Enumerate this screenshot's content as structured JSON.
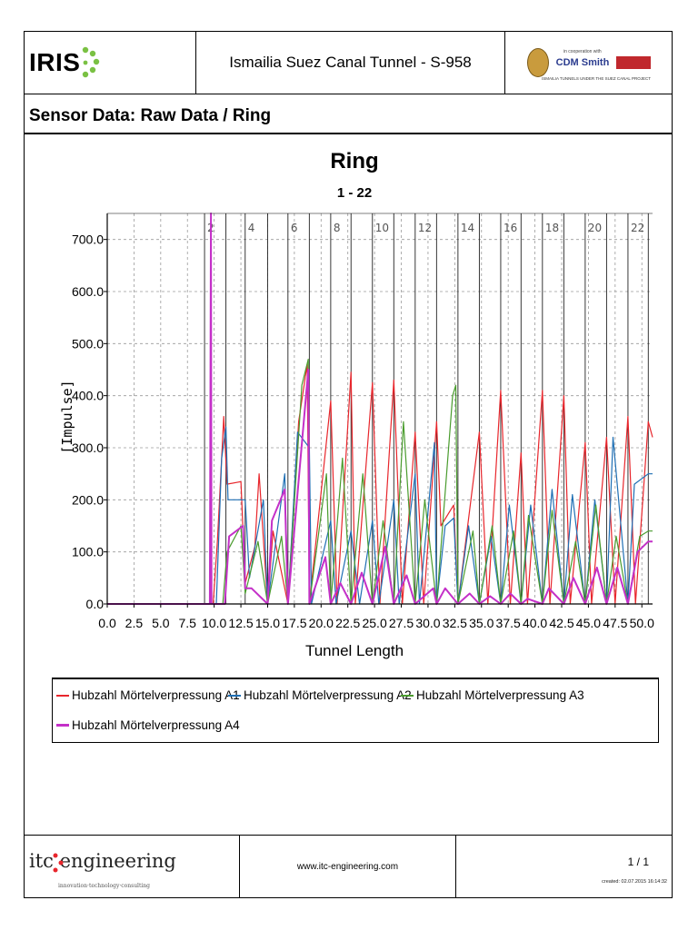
{
  "header": {
    "logo_text": "IRIS",
    "title": "Ismailia Suez Canal Tunnel - S-958",
    "partner_logo_text": "CDM Smith",
    "cooperation_text": "in cooperation with",
    "project_text": "ISMAILIA TUNNELS UNDER THE SUEZ CANAL PROJECT"
  },
  "subtitle": "Sensor Data: Raw Data / Ring",
  "chart_data": {
    "type": "line",
    "title": "Ring",
    "subtitle": "1 - 22",
    "xlabel": "Tunnel Length",
    "ylabel": "[Impulse]",
    "xlim": [
      0,
      51.0
    ],
    "ylim": [
      0,
      750
    ],
    "x_ticks": [
      "0.0",
      "2.5",
      "5.0",
      "7.5",
      "10.0",
      "12.5",
      "15.0",
      "17.5",
      "20.0",
      "22.5",
      "25.0",
      "27.5",
      "30.0",
      "32.5",
      "35.0",
      "37.5",
      "40.0",
      "42.5",
      "45.0",
      "47.5",
      "50.0"
    ],
    "y_ticks": [
      "0.0",
      "100.0",
      "200.0",
      "300.0",
      "400.0",
      "500.0",
      "600.0",
      "700.0"
    ],
    "grid": true,
    "ring_markers": [
      {
        "label": "2",
        "x": 9.1
      },
      {
        "label": "4",
        "x": 12.9
      },
      {
        "label": "6",
        "x": 16.9
      },
      {
        "label": "8",
        "x": 20.9
      },
      {
        "label": "10",
        "x": 24.8
      },
      {
        "label": "12",
        "x": 28.8
      },
      {
        "label": "14",
        "x": 32.8
      },
      {
        "label": "16",
        "x": 36.8
      },
      {
        "label": "18",
        "x": 40.7
      },
      {
        "label": "20",
        "x": 44.7
      },
      {
        "label": "22",
        "x": 48.7
      }
    ],
    "ring_lines_x": [
      9.1,
      11.1,
      12.9,
      15.0,
      16.9,
      18.9,
      20.9,
      22.8,
      24.8,
      26.8,
      28.8,
      30.8,
      32.8,
      34.8,
      36.8,
      38.7,
      40.7,
      42.7,
      44.7,
      46.7,
      48.7,
      50.6
    ],
    "series": [
      {
        "name": "Hubzahl Mörtelverpressung A1",
        "color": "#e8262c",
        "width": 1.2,
        "x": [
          0,
          9.9,
          10.3,
          10.9,
          11.2,
          12.5,
          12.9,
          13.8,
          14.2,
          15.0,
          15.5,
          16.9,
          17.9,
          18.7,
          18.9,
          20.9,
          21.5,
          22.8,
          23.2,
          24.8,
          25.5,
          26.8,
          27.6,
          28.8,
          29.6,
          30.8,
          31.2,
          32.4,
          32.8,
          34.8,
          35.6,
          36.8,
          37.7,
          38.7,
          39.3,
          40.7,
          41.4,
          42.7,
          43.3,
          44.7,
          45.3,
          46.7,
          47.5,
          48.7,
          49.4,
          50.6,
          51.0
        ],
        "y": [
          0,
          0,
          120,
          360,
          230,
          235,
          40,
          110,
          250,
          0,
          140,
          0,
          350,
          460,
          0,
          390,
          0,
          445,
          0,
          425,
          0,
          430,
          0,
          330,
          0,
          350,
          150,
          190,
          0,
          330,
          0,
          410,
          0,
          290,
          0,
          410,
          0,
          400,
          0,
          310,
          0,
          320,
          0,
          360,
          0,
          350,
          320
        ]
      },
      {
        "name": "Hubzahl Mörtelverpressung A2",
        "color": "#1f6fb4",
        "width": 1.2,
        "x": [
          0,
          10.2,
          10.7,
          11.1,
          11.3,
          12.9,
          13.3,
          14.6,
          15.0,
          16.6,
          16.9,
          17.8,
          18.9,
          19.1,
          20.9,
          21.4,
          22.8,
          23.6,
          24.8,
          25.4,
          26.8,
          27.3,
          28.8,
          29.2,
          30.6,
          30.8,
          31.6,
          32.4,
          32.8,
          33.8,
          34.8,
          35.9,
          36.8,
          37.6,
          38.7,
          39.6,
          40.7,
          41.6,
          42.7,
          43.5,
          44.7,
          45.6,
          46.7,
          47.3,
          48.7,
          49.3,
          50.6,
          51.0
        ],
        "y": [
          0,
          0,
          280,
          340,
          200,
          200,
          50,
          200,
          0,
          250,
          0,
          330,
          300,
          0,
          160,
          0,
          140,
          0,
          160,
          0,
          200,
          0,
          250,
          0,
          310,
          0,
          150,
          165,
          0,
          150,
          0,
          130,
          0,
          190,
          0,
          190,
          0,
          220,
          0,
          210,
          0,
          200,
          0,
          320,
          0,
          230,
          250,
          250
        ]
      },
      {
        "name": "Hubzahl Mörtelverpressung A3",
        "color": "#4a9c2e",
        "width": 1.2,
        "x": [
          0,
          10.8,
          11.2,
          12.5,
          12.9,
          14.1,
          15.0,
          16.3,
          16.9,
          18.2,
          18.8,
          18.9,
          20.5,
          20.9,
          22.0,
          22.8,
          23.9,
          24.8,
          25.8,
          26.8,
          27.7,
          28.8,
          29.7,
          30.8,
          32.3,
          32.6,
          32.8,
          34.2,
          34.8,
          36.0,
          36.8,
          38.0,
          38.7,
          39.4,
          40.7,
          41.6,
          42.7,
          43.8,
          44.7,
          45.7,
          46.7,
          47.6,
          48.7,
          49.8,
          50.6,
          51.0
        ],
        "y": [
          0,
          0,
          100,
          150,
          20,
          120,
          0,
          130,
          0,
          420,
          470,
          0,
          250,
          0,
          280,
          0,
          250,
          0,
          160,
          0,
          350,
          0,
          200,
          0,
          400,
          420,
          0,
          140,
          0,
          150,
          0,
          140,
          0,
          170,
          0,
          180,
          0,
          120,
          0,
          190,
          0,
          130,
          0,
          130,
          140,
          140
        ]
      },
      {
        "name": "Hubzahl Mörtelverpressung A4",
        "color": "#c430c8",
        "width": 2,
        "x": [
          0,
          9.6,
          9.7,
          9.75,
          11.0,
          11.4,
          12.7,
          12.9,
          13.5,
          15.0,
          15.4,
          16.6,
          16.9,
          18.8,
          18.9,
          20.4,
          20.9,
          21.8,
          22.8,
          23.8,
          24.8,
          26.0,
          26.8,
          28.0,
          28.8,
          30.5,
          30.8,
          31.6,
          32.8,
          33.9,
          34.8,
          35.8,
          36.8,
          37.7,
          38.7,
          39.3,
          40.7,
          41.3,
          42.7,
          43.6,
          44.7,
          45.8,
          46.7,
          47.7,
          48.7,
          49.6,
          50.6,
          51.0
        ],
        "y": [
          0,
          0,
          750,
          0,
          0,
          130,
          150,
          30,
          30,
          0,
          160,
          220,
          0,
          450,
          0,
          90,
          0,
          40,
          0,
          60,
          0,
          110,
          0,
          55,
          0,
          30,
          0,
          30,
          0,
          20,
          0,
          15,
          0,
          20,
          0,
          10,
          0,
          30,
          0,
          50,
          0,
          70,
          0,
          70,
          0,
          100,
          120,
          120
        ]
      }
    ]
  },
  "legend": {
    "items": [
      "Hubzahl Mörtelverpressung A1",
      "Hubzahl Mörtelverpressung A2",
      "Hubzahl Mörtelverpressung A3",
      "Hubzahl Mörtelverpressung A4"
    ]
  },
  "footer": {
    "company": "itc engineering",
    "tagline": "innovation·technology·consulting",
    "url": "www.itc-engineering.com",
    "page": "1 / 1",
    "created": "created: 02.07.2015 16:14:32"
  }
}
